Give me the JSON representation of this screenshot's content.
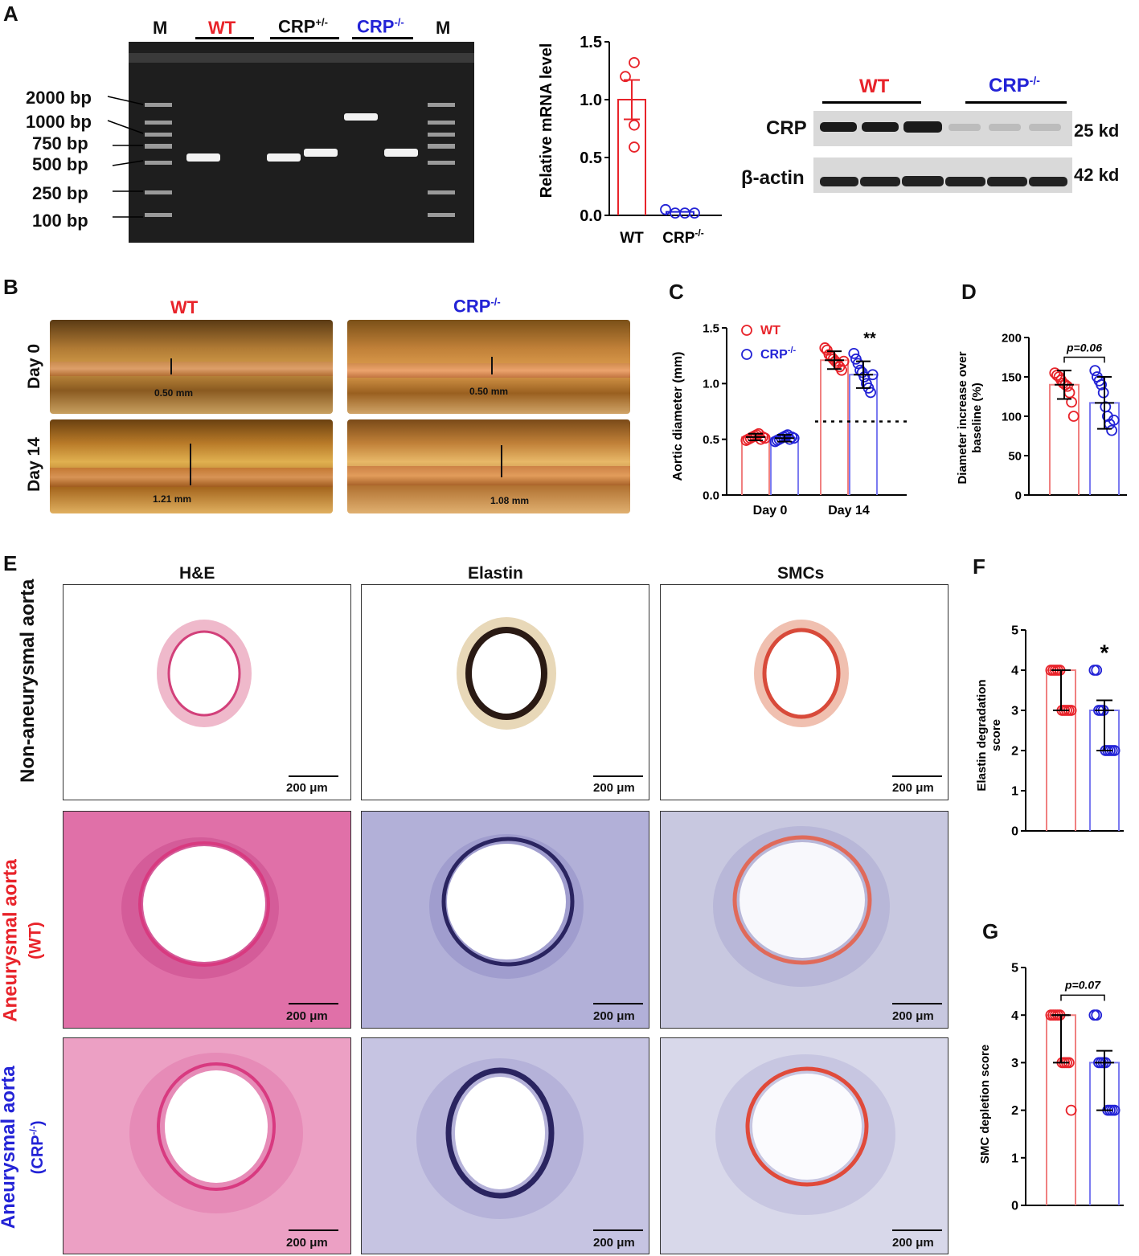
{
  "panels": {
    "A": "A",
    "B": "B",
    "C": "C",
    "D": "D",
    "E": "E",
    "F": "F",
    "G": "G"
  },
  "colors": {
    "wt": "#e8232a",
    "ko": "#2323d6",
    "wt_light": "#f08080",
    "ko_light": "#7b7bf0"
  },
  "gel": {
    "lanes": [
      "M",
      "WT",
      "CRP+/-",
      "CRP-/-",
      "M"
    ],
    "ladder": [
      "2000 bp",
      "1000 bp",
      "750 bp",
      "500 bp",
      "250 bp",
      "100 bp"
    ]
  },
  "mrna_chart": {
    "ylabel": "Relative mRNA level",
    "categories": [
      "WT",
      "CRP-/-"
    ],
    "yticks": [
      "0.0",
      "0.5",
      "1.0",
      "1.5"
    ]
  },
  "western": {
    "groups": [
      "WT",
      "CRP-/-"
    ],
    "rows": [
      "CRP",
      "β-actin"
    ],
    "sizes": [
      "25 kd",
      "42 kd"
    ]
  },
  "photos": {
    "cols": [
      "WT",
      "CRP-/-"
    ],
    "rows": [
      "Day 0",
      "Day 14"
    ],
    "measures": [
      "0.50 mm",
      "0.50 mm",
      "1.21 mm",
      "1.08 mm"
    ]
  },
  "histology": {
    "cols": [
      "H&E",
      "Elastin",
      "SMCs"
    ],
    "row1": "Non-aneurysmal aorta",
    "row2a": "Aneurysmal",
    "row2b": "aorta",
    "row2c": "(WT)",
    "row3a": "Aneurysmal",
    "row3b": "aorta",
    "row3c": "(CRP-/-)",
    "scalebar": "200 μm"
  },
  "chart_data": [
    {
      "type": "bar",
      "panel": "A",
      "ylabel": "Relative mRNA level",
      "categories": [
        "WT",
        "CRP-/-"
      ],
      "values": [
        1.0,
        0.03
      ],
      "sem": [
        0.17,
        0.01
      ],
      "points": [
        [
          1.32,
          1.2,
          0.78,
          0.59
        ],
        [
          0.05,
          0.02,
          0.02,
          0.02
        ]
      ],
      "ylim": [
        0,
        1.5
      ]
    },
    {
      "type": "bar",
      "panel": "C",
      "ylabel": "Aortic diameter (mm)",
      "categories": [
        "Day 0",
        "Day 14"
      ],
      "series": [
        {
          "name": "WT",
          "values": [
            0.52,
            1.21
          ],
          "sd": [
            0.03,
            0.08
          ]
        },
        {
          "name": "CRP-/-",
          "values": [
            0.51,
            1.08
          ],
          "sd": [
            0.03,
            0.12
          ]
        }
      ],
      "annotation": "**",
      "reference_line": 0.66,
      "ylim": [
        0,
        1.5
      ]
    },
    {
      "type": "bar",
      "panel": "D",
      "ylabel": "Diameter increase over baseline (%)",
      "categories": [
        "WT",
        "CRP-/-"
      ],
      "values": [
        140,
        117
      ],
      "sd": [
        18,
        33
      ],
      "annotation": "p=0.06",
      "ylim": [
        0,
        200
      ]
    },
    {
      "type": "bar",
      "panel": "F",
      "ylabel": "Elastin degradation score",
      "categories": [
        "WT",
        "CRP-/-"
      ],
      "values": [
        4,
        3
      ],
      "iqr": [
        [
          3,
          4
        ],
        [
          2,
          3.25
        ]
      ],
      "annotation": "*",
      "ylim": [
        0,
        5
      ]
    },
    {
      "type": "bar",
      "panel": "G",
      "ylabel": "SMC depletion score",
      "categories": [
        "WT",
        "CRP-/-"
      ],
      "values": [
        4,
        3
      ],
      "iqr": [
        [
          3,
          4
        ],
        [
          2,
          3.25
        ]
      ],
      "annotation": "p=0.07",
      "ylim": [
        0,
        5
      ]
    }
  ]
}
